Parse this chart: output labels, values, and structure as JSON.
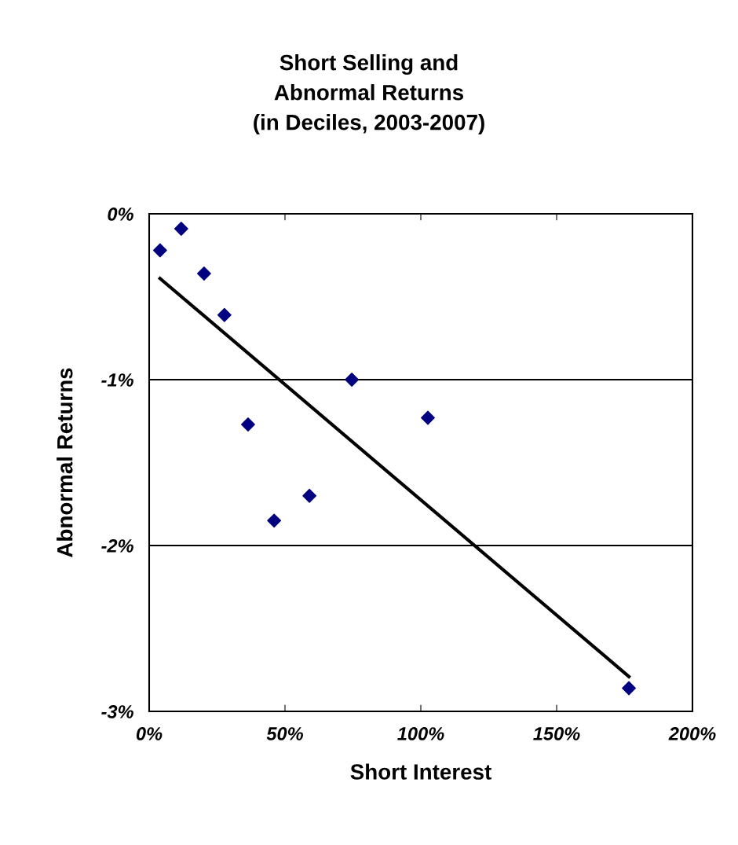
{
  "chart_data": {
    "type": "scatter",
    "title": "Short Selling and\nAbnormal Returns\n(in Deciles, 2003-2007)",
    "xlabel": "Short Interest",
    "ylabel": "Abnormal Returns",
    "series": [
      {
        "marker": "diamond",
        "color": "#000080",
        "x": [
          4.0,
          11.8,
          20.2,
          27.7,
          36.4,
          46,
          59,
          74.6,
          102.6,
          176.6
        ],
        "values": [
          -0.22,
          -0.09,
          -0.36,
          -0.61,
          -1.27,
          -1.85,
          -1.7,
          -1.0,
          -1.23,
          -2.86
        ]
      },
      {
        "type": "line",
        "marker": "none",
        "color": "#000000",
        "x": [
          4.0,
          176.6
        ],
        "values": [
          -0.39,
          -2.79
        ]
      }
    ],
    "grid": "y",
    "xlim": [
      0,
      200
    ],
    "xticks": [
      {
        "value": 0,
        "label": "0%"
      },
      {
        "value": 50,
        "label": "50%"
      },
      {
        "value": 100,
        "label": "100%"
      },
      {
        "value": 150,
        "label": "150%"
      },
      {
        "value": 200,
        "label": "200%"
      }
    ],
    "ylim": [
      -3,
      0
    ],
    "yticks": [
      {
        "value": -3,
        "label": "-3%"
      },
      {
        "value": -2,
        "label": "-2%"
      },
      {
        "value": -1,
        "label": "-1%"
      },
      {
        "value": 0,
        "label": "0%"
      }
    ]
  }
}
